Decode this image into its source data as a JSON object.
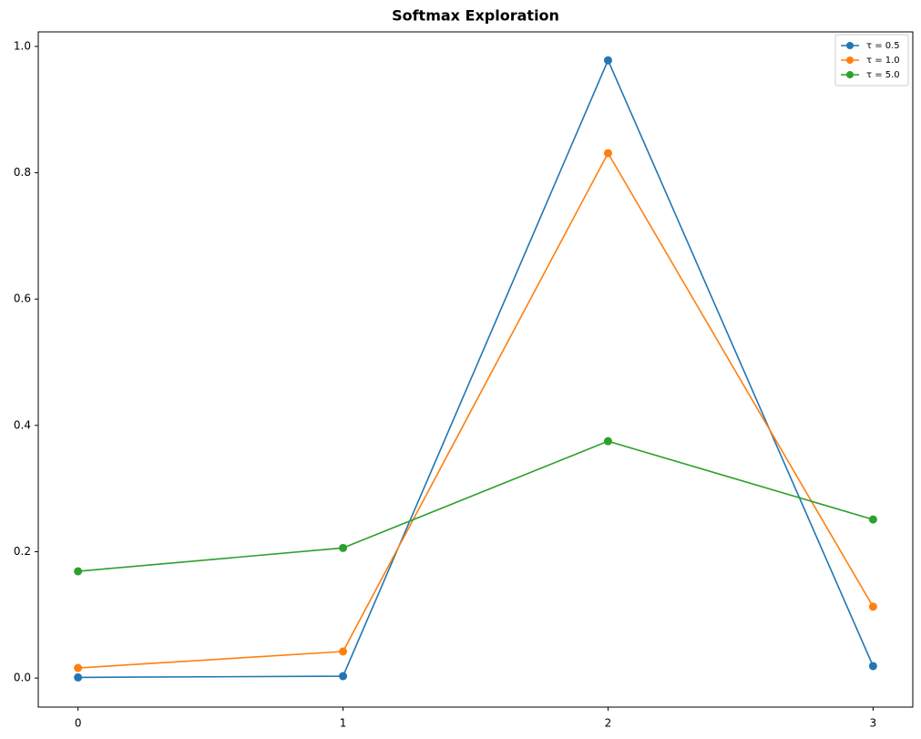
{
  "chart_data": {
    "type": "line",
    "title": "Softmax Exploration",
    "x": [
      0,
      1,
      2,
      3
    ],
    "series": [
      {
        "name": "τ = 0.5",
        "color": "#1f77b4",
        "values": [
          0.001,
          0.003,
          0.978,
          0.019
        ]
      },
      {
        "name": "τ = 1.0",
        "color": "#ff7f0e",
        "values": [
          0.016,
          0.042,
          0.831,
          0.113
        ]
      },
      {
        "name": "τ = 5.0",
        "color": "#2ca02c",
        "values": [
          0.169,
          0.206,
          0.375,
          0.251
        ]
      }
    ],
    "xlim": [
      -0.15,
      3.15
    ],
    "xticks": [
      0,
      1,
      2,
      3
    ],
    "ylim": [
      -0.046,
      1.023
    ],
    "yticks": [
      {
        "value": 0.0,
        "label": "0.0"
      },
      0.2,
      0.4,
      0.6,
      0.8,
      {
        "value": 1.0,
        "label": "1.0"
      }
    ],
    "legend": "upper right",
    "grid": false
  }
}
